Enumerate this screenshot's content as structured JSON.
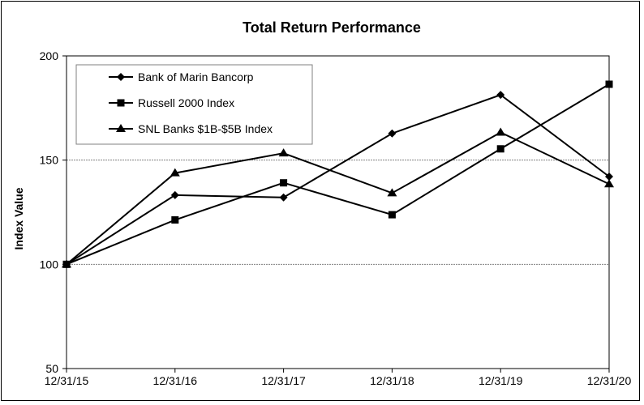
{
  "chart_data": {
    "type": "line",
    "title": "Total Return Performance",
    "xlabel": "",
    "ylabel": "Index Value",
    "categories": [
      "12/31/15",
      "12/31/16",
      "12/31/17",
      "12/31/18",
      "12/31/19",
      "12/31/20"
    ],
    "ylim": [
      50,
      200
    ],
    "yticks": [
      50,
      100,
      150,
      200
    ],
    "gridlines_at": [
      100,
      150
    ],
    "legend_position": "top-left",
    "series": [
      {
        "name": "Bank of Marin Bancorp",
        "marker": "diamond",
        "values": [
          100,
          133.2,
          132.1,
          162.8,
          181.3,
          142.1
        ]
      },
      {
        "name": "Russell 2000 Index",
        "marker": "square",
        "values": [
          100,
          121.3,
          139.1,
          123.8,
          155.4,
          186.4
        ]
      },
      {
        "name": "SNL Banks $1B-$5B Index",
        "marker": "triangle",
        "values": [
          100,
          143.8,
          153.3,
          134.2,
          163.3,
          138.5
        ]
      }
    ],
    "line_color": "#000000",
    "gridline_color": "#808080"
  }
}
